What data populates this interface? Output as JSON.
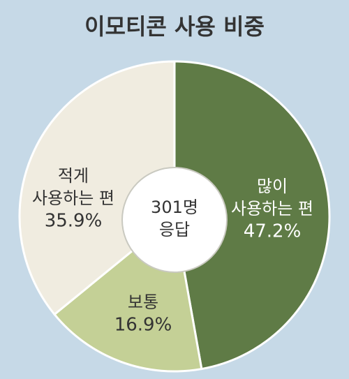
{
  "chart_data": {
    "type": "donut",
    "title": "이모티콘 사용 비중",
    "center_text": [
      "301명",
      "응답"
    ],
    "categories": [
      [
        "많이",
        "사용하는 편"
      ],
      [
        "보통"
      ],
      [
        "적게",
        "사용하는 편"
      ]
    ],
    "values": [
      47.2,
      16.9,
      35.9
    ],
    "value_labels": [
      "47.2%",
      "16.9%",
      "35.9%"
    ],
    "colors": [
      "#5f7b46",
      "#c4d096",
      "#f0ece0"
    ],
    "label_colors": [
      "#ffffff",
      "#333333",
      "#333333"
    ]
  }
}
